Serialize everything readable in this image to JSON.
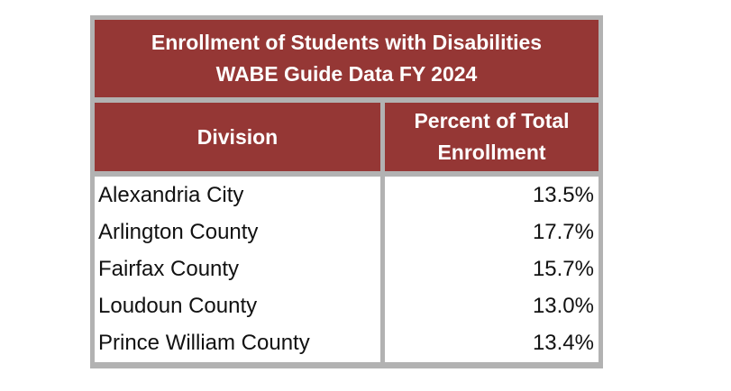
{
  "title": {
    "line1": "Enrollment of Students with Disabilities",
    "line2": "WABE Guide Data FY 2024"
  },
  "columns": {
    "division": "Division",
    "percent_line1": "Percent of Total",
    "percent_line2": "Enrollment"
  },
  "rows": [
    {
      "division": "Alexandria City",
      "percent": "13.5%"
    },
    {
      "division": "Arlington County",
      "percent": "17.7%"
    },
    {
      "division": "Fairfax County",
      "percent": "15.7%"
    },
    {
      "division": "Loudoun County",
      "percent": "13.0%"
    },
    {
      "division": "Prince William County",
      "percent": "13.4%"
    }
  ],
  "colors": {
    "header_fill": "#953735",
    "border": "#b2b2b2",
    "header_text": "#ffffff"
  }
}
